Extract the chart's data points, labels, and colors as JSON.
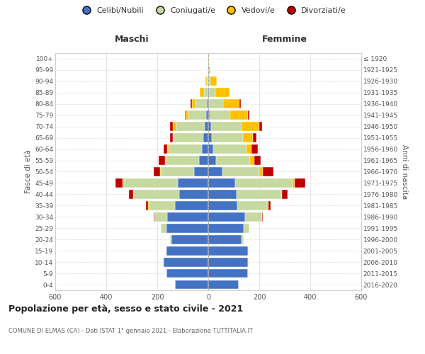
{
  "age_groups": [
    "0-4",
    "5-9",
    "10-14",
    "15-19",
    "20-24",
    "25-29",
    "30-34",
    "35-39",
    "40-44",
    "45-49",
    "50-54",
    "55-59",
    "60-64",
    "65-69",
    "70-74",
    "75-79",
    "80-84",
    "85-89",
    "90-94",
    "95-99",
    "100+"
  ],
  "birth_years": [
    "2016-2020",
    "2011-2015",
    "2006-2010",
    "2001-2005",
    "1996-2000",
    "1991-1995",
    "1986-1990",
    "1981-1985",
    "1976-1980",
    "1971-1975",
    "1966-1970",
    "1961-1965",
    "1956-1960",
    "1951-1955",
    "1946-1950",
    "1941-1945",
    "1936-1940",
    "1931-1935",
    "1926-1930",
    "1921-1925",
    "≤ 1920"
  ],
  "male": {
    "celibi": [
      130,
      165,
      175,
      165,
      145,
      165,
      160,
      130,
      115,
      120,
      55,
      35,
      25,
      20,
      15,
      8,
      5,
      2,
      1,
      0,
      0
    ],
    "coniugati": [
      0,
      0,
      2,
      2,
      5,
      20,
      50,
      100,
      180,
      210,
      130,
      130,
      130,
      115,
      110,
      70,
      45,
      15,
      5,
      1,
      0
    ],
    "vedovi": [
      0,
      0,
      0,
      0,
      0,
      0,
      0,
      5,
      0,
      5,
      5,
      5,
      5,
      5,
      15,
      10,
      15,
      15,
      5,
      1,
      0
    ],
    "divorziati": [
      0,
      0,
      0,
      0,
      0,
      0,
      5,
      10,
      15,
      30,
      25,
      25,
      15,
      10,
      10,
      5,
      5,
      0,
      0,
      0,
      0
    ]
  },
  "female": {
    "nubili": [
      120,
      155,
      155,
      155,
      130,
      140,
      145,
      115,
      110,
      105,
      55,
      30,
      20,
      15,
      10,
      5,
      3,
      2,
      1,
      0,
      0
    ],
    "coniugate": [
      0,
      0,
      2,
      2,
      10,
      20,
      65,
      115,
      175,
      225,
      145,
      135,
      130,
      120,
      120,
      80,
      55,
      25,
      8,
      3,
      1
    ],
    "vedove": [
      0,
      0,
      0,
      0,
      0,
      0,
      0,
      5,
      5,
      10,
      15,
      15,
      20,
      40,
      70,
      70,
      65,
      55,
      25,
      5,
      1
    ],
    "divorziate": [
      0,
      0,
      0,
      0,
      0,
      0,
      5,
      10,
      20,
      40,
      40,
      25,
      25,
      15,
      10,
      5,
      5,
      0,
      0,
      0,
      0
    ]
  },
  "colors": {
    "celibi": "#4472c4",
    "coniugati": "#c5d9a0",
    "vedovi": "#ffc000",
    "divorziati": "#c00000"
  },
  "title": "Popolazione per età, sesso e stato civile - 2021",
  "subtitle": "COMUNE DI ELMAS (CA) - Dati ISTAT 1° gennaio 2021 - Elaborazione TUTTITALIA.IT",
  "xlabel_left": "Maschi",
  "xlabel_right": "Femmine",
  "ylabel_left": "Fasce di età",
  "ylabel_right": "Anni di nascita",
  "xlim": 600,
  "legend_labels": [
    "Celibi/Nubili",
    "Coniugati/e",
    "Vedovi/e",
    "Divorziati/e"
  ],
  "background_color": "#ffffff"
}
